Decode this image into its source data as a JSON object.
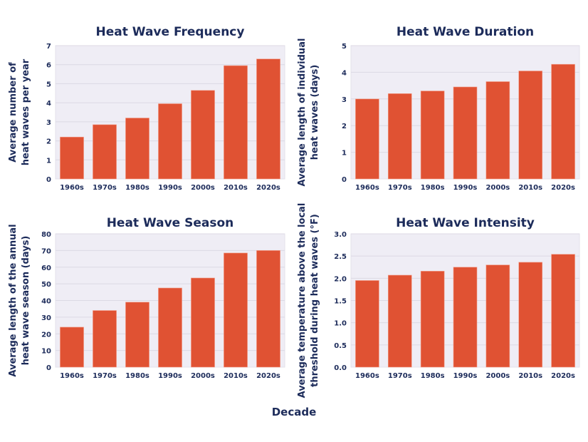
{
  "figure": {
    "shared_xlabel": "Decade",
    "colors": {
      "bar": "#e05233",
      "plot_background": "#efedf5",
      "gridline": "#dcd9e4",
      "text": "#1c2b5a"
    }
  },
  "chart_data": [
    {
      "type": "bar",
      "title": "Heat Wave Frequency",
      "xlabel": "",
      "ylabel": [
        "Average number of",
        "heat waves per year"
      ],
      "categories": [
        "1960s",
        "1970s",
        "1980s",
        "1990s",
        "2000s",
        "2010s",
        "2020s"
      ],
      "values": [
        2.2,
        2.85,
        3.2,
        3.95,
        4.65,
        5.95,
        6.3
      ],
      "ylim": [
        0,
        7
      ],
      "yticks": [
        "0",
        "1",
        "2",
        "3",
        "4",
        "5",
        "6",
        "7"
      ],
      "ytick_values": [
        0,
        1,
        2,
        3,
        4,
        5,
        6,
        7
      ],
      "grid": true
    },
    {
      "type": "bar",
      "title": "Heat Wave Duration",
      "xlabel": "",
      "ylabel": [
        "Average length of individual",
        "heat waves (days)"
      ],
      "categories": [
        "1960s",
        "1970s",
        "1980s",
        "1990s",
        "2000s",
        "2010s",
        "2020s"
      ],
      "values": [
        3.0,
        3.2,
        3.3,
        3.45,
        3.65,
        4.05,
        4.3
      ],
      "ylim": [
        0,
        5
      ],
      "yticks": [
        "0",
        "1",
        "2",
        "3",
        "4",
        "5"
      ],
      "ytick_values": [
        0,
        1,
        2,
        3,
        4,
        5
      ],
      "grid": true
    },
    {
      "type": "bar",
      "title": "Heat Wave Season",
      "xlabel": "",
      "ylabel": [
        "Average length of the annual",
        "heat wave season (days)"
      ],
      "categories": [
        "1960s",
        "1970s",
        "1980s",
        "1990s",
        "2000s",
        "2010s",
        "2020s"
      ],
      "values": [
        24,
        34,
        39,
        47.5,
        53.5,
        68.5,
        70
      ],
      "ylim": [
        0,
        80
      ],
      "yticks": [
        "0",
        "10",
        "20",
        "30",
        "40",
        "50",
        "60",
        "70",
        "80"
      ],
      "ytick_values": [
        0,
        10,
        20,
        30,
        40,
        50,
        60,
        70,
        80
      ],
      "grid": true
    },
    {
      "type": "bar",
      "title": "Heat Wave Intensity",
      "xlabel": "",
      "ylabel": [
        "Average temperature above the local",
        "threshold during heat waves (°F)"
      ],
      "categories": [
        "1960s",
        "1970s",
        "1980s",
        "1990s",
        "2000s",
        "2010s",
        "2020s"
      ],
      "values": [
        1.95,
        2.07,
        2.16,
        2.25,
        2.3,
        2.36,
        2.54
      ],
      "ylim": [
        0,
        3
      ],
      "yticks": [
        "0.0",
        "0.5",
        "1.0",
        "1.5",
        "2.0",
        "2.5",
        "3.0"
      ],
      "ytick_values": [
        0,
        0.5,
        1,
        1.5,
        2,
        2.5,
        3
      ],
      "grid": true
    }
  ]
}
